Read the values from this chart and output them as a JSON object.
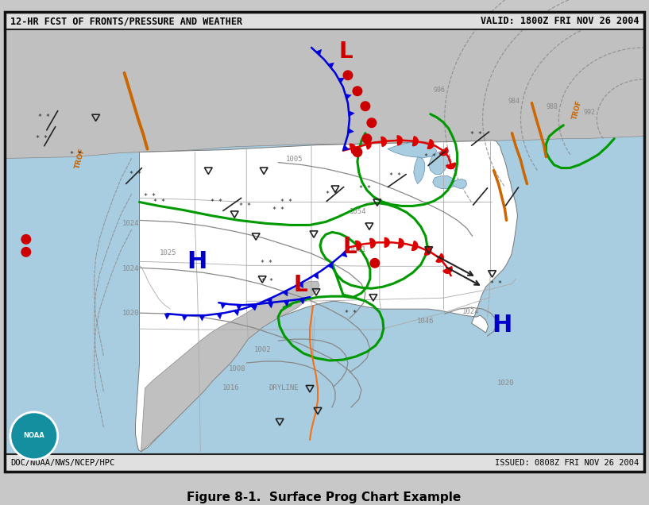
{
  "title_left": "12-HR FCST OF FRONTS/PRESSURE AND WEATHER",
  "title_right": "VALID: 1800Z FRI NOV 26 2004",
  "footer_left": "DOC/NOAA/NWS/NCEP/HPC",
  "footer_right": "ISSUED: 0808Z FRI NOV 26 2004",
  "caption": "Figure 8-1.  Surface Prog Chart Example",
  "bg_ocean": "#a8cce0",
  "bg_land_us": "#ffffff",
  "bg_land_canada": "#c0c0c0",
  "bg_land_mexico": "#c0c0c0",
  "lake_color": "#a8cce0",
  "isobar_land": "#888888",
  "isobar_ocean": "#888888",
  "front_blue": "#0000dd",
  "front_red": "#dd0000",
  "wx_green": "#009900",
  "trough_orange": "#cc6600",
  "dryline_orange": "#ff6600",
  "H_color": "#0000cc",
  "L_color": "#cc0000",
  "state_border": "#aaaaaa",
  "map_border": "#222222",
  "title_bg": "#e0e0e0",
  "noaa_blue": "#1a5276",
  "noaa_teal": "#148fa0"
}
